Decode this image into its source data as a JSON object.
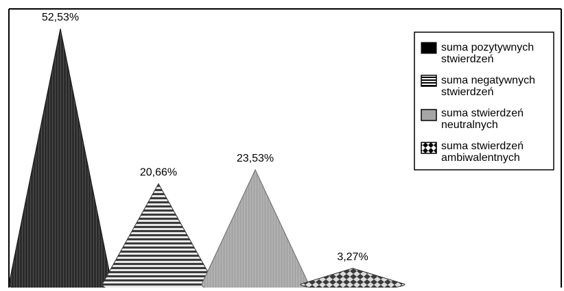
{
  "chart_data": {
    "type": "bar",
    "shape": "cone",
    "categories": [
      "suma pozytywnych stwierdzeń",
      "suma negatywnych stwierdzeń",
      "suma stwierdzeń neutralnych",
      "suma stwierdzeń ambiwalentnych"
    ],
    "values": [
      52.53,
      20.66,
      23.53,
      3.27
    ],
    "value_labels": [
      "52,53%",
      "20,66%",
      "23,53%",
      "3,27%"
    ],
    "legend": {
      "placement": "top-right",
      "entries": [
        {
          "line1": "suma pozytywnych",
          "line2": "stwierdzeń",
          "pattern": "solid-dark"
        },
        {
          "line1": "suma negatywnych",
          "line2": "stwierdzeń",
          "pattern": "horizontal-stripes"
        },
        {
          "line1": "suma stwierdzeń",
          "line2": "neutralnych",
          "pattern": "solid-gray"
        },
        {
          "line1": "suma stwierdzeń",
          "line2": "ambiwalentnych",
          "pattern": "checker-diamonds"
        }
      ]
    },
    "ylim": [
      0,
      52.53
    ],
    "grid": false,
    "colors": {
      "cone_1": "#2b2b2b",
      "cone_2": "#bdbdbd",
      "cone_3": "#a6a6a6",
      "cone_4": "#9a9a9a",
      "frame": "#000000"
    }
  }
}
